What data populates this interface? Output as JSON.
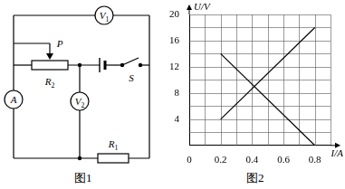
{
  "figure1": {
    "caption": "图1",
    "labels": {
      "voltmeter1": "V1",
      "voltmeter2": "V2",
      "ammeter": "A",
      "slider": "P",
      "rheostat": "R2",
      "resistor": "R1",
      "switch": "S"
    }
  },
  "chart_data": {
    "type": "line",
    "caption": "图2",
    "x_label": "I/A",
    "y_label": "U/V",
    "xlim": [
      0,
      0.9
    ],
    "ylim": [
      0,
      20
    ],
    "xticks": [
      0,
      0.2,
      0.4,
      0.6,
      0.8
    ],
    "yticks": [
      4,
      8,
      12,
      16,
      20
    ],
    "grid": true,
    "series": [
      {
        "x": [
          0.2,
          0.8
        ],
        "values": [
          4,
          18
        ],
        "color": "#000000"
      },
      {
        "x": [
          0.2,
          0.8
        ],
        "values": [
          14,
          0
        ],
        "color": "#000000"
      }
    ]
  }
}
